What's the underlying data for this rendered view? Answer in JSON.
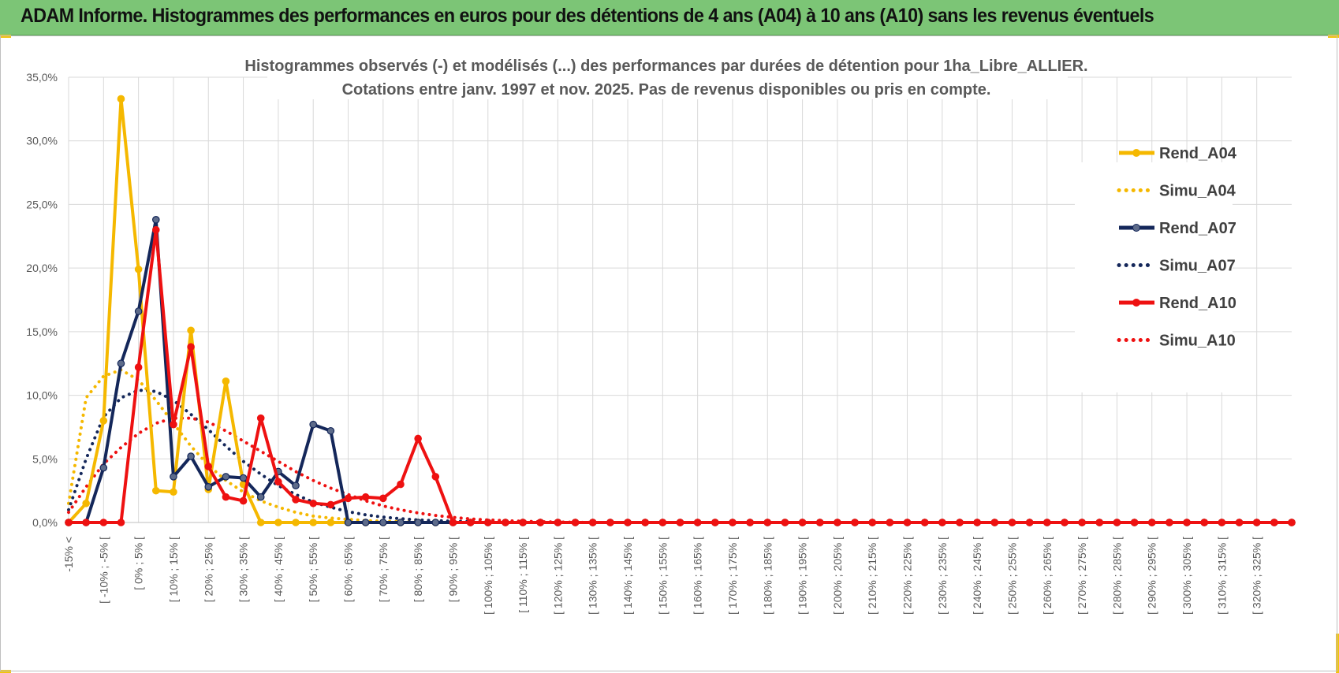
{
  "banner": {
    "title": "ADAM Informe. Histogrammes des performances en euros pour des détentions de 4 ans (A04) à 10 ans (A10) sans les revenus éventuels",
    "color": "#7cc576"
  },
  "chart_data": {
    "type": "line",
    "title_line1": "Histogrammes observés (-) et modélisés (...) des performances par durées de détention pour 1ha_Libre_ALLIER.",
    "title_line2": "Cotations entre janv. 1997 et nov. 2025. Pas de revenus disponibles ou pris en compte.",
    "yticks": [
      "0,0%",
      "5,0%",
      "10,0%",
      "15,0%",
      "20,0%",
      "25,0%",
      "30,0%",
      "35,0%"
    ],
    "ylim": [
      0,
      35
    ],
    "grid": true,
    "legend_position": "right",
    "x_labels": [
      "-15% <",
      "[ -10% ; -5% [",
      "[ 0% ; 5% [",
      "[ 10% ; 15% [",
      "[ 20% ; 25% [",
      "[ 30% ; 35% [",
      "[ 40% ; 45% [",
      "[ 50% ; 55% [",
      "[ 60% ; 65% [",
      "[ 70% ; 75% [",
      "[ 80% ; 85% [",
      "[ 90% ; 95% [",
      "[ 100% ; 105% [",
      "[ 110% ; 115% [",
      "[ 120% ; 125% [",
      "[ 130% ; 135% [",
      "[ 140% ; 145% [",
      "[ 150% ; 155% [",
      "[ 160% ; 165% [",
      "[ 170% ; 175% [",
      "[ 180% ; 185% [",
      "[ 190% ; 195% [",
      "[ 200% ; 205% [",
      "[ 210% ; 215% [",
      "[ 220% ; 225% [",
      "[ 230% ; 235% [",
      "[ 240% ; 245% [",
      "[ 250% ; 255% [",
      "[ 260% ; 265% [",
      "[ 270% ; 275% [",
      "[ 280% ; 285% [",
      "[ 290% ; 295% [",
      "[ 300% ; 305% [",
      "[ 310% ; 315% [",
      "[ 320% ; 325% ["
    ],
    "n_points": 71,
    "series": [
      {
        "name": "Rend_A04",
        "color": "#f5b800",
        "style": "solid",
        "markers": true,
        "values": [
          0,
          1.5,
          8,
          33.3,
          19.9,
          2.5,
          2.4,
          15.1,
          2.6,
          11.1,
          3.0,
          0,
          0,
          0,
          0,
          0,
          0,
          0,
          0,
          0,
          0,
          0,
          0,
          0,
          0,
          0,
          0,
          0,
          0,
          0,
          0,
          0,
          0,
          0,
          0,
          0,
          0,
          0,
          0,
          0,
          0,
          0,
          0,
          0,
          0,
          0,
          0,
          0,
          0,
          0,
          0,
          0,
          0,
          0,
          0,
          0,
          0,
          0,
          0,
          0,
          0,
          0,
          0,
          0,
          0,
          0,
          0,
          0,
          0,
          0,
          0
        ]
      },
      {
        "name": "Simu_A04",
        "color": "#f5b800",
        "style": "dotted",
        "markers": false,
        "values": [
          1.5,
          9.8,
          11.5,
          12.0,
          11.2,
          9.6,
          7.8,
          6.0,
          4.5,
          3.3,
          2.4,
          1.7,
          1.2,
          0.8,
          0.5,
          0.35,
          0.25,
          0.15,
          0.1,
          0.07,
          0.05,
          0,
          0,
          0,
          0,
          0,
          0,
          0,
          0,
          0,
          0,
          0,
          0,
          0,
          0,
          0,
          0,
          0,
          0,
          0,
          0,
          0,
          0,
          0,
          0,
          0,
          0,
          0,
          0,
          0,
          0,
          0,
          0,
          0,
          0,
          0,
          0,
          0,
          0,
          0,
          0,
          0,
          0,
          0,
          0,
          0,
          0,
          0,
          0,
          0,
          0
        ]
      },
      {
        "name": "Rend_A07",
        "color": "#14275a",
        "style": "solid",
        "markers": true,
        "values": [
          0,
          0,
          4.3,
          12.5,
          16.6,
          23.8,
          3.6,
          5.2,
          2.8,
          3.6,
          3.5,
          2.0,
          4.0,
          2.9,
          7.7,
          7.2,
          0,
          0,
          0,
          0,
          0,
          0,
          0,
          0,
          0,
          0,
          0,
          0,
          0,
          0,
          0,
          0,
          0,
          0,
          0,
          0,
          0,
          0,
          0,
          0,
          0,
          0,
          0,
          0,
          0,
          0,
          0,
          0,
          0,
          0,
          0,
          0,
          0,
          0,
          0,
          0,
          0,
          0,
          0,
          0,
          0,
          0,
          0,
          0,
          0,
          0,
          0,
          0,
          0,
          0,
          0
        ]
      },
      {
        "name": "Simu_A07",
        "color": "#14275a",
        "style": "dotted",
        "markers": false,
        "values": [
          1.0,
          5.0,
          8.3,
          9.8,
          10.4,
          10.3,
          9.6,
          8.5,
          7.3,
          6.0,
          4.8,
          3.8,
          2.9,
          2.2,
          1.6,
          1.2,
          0.85,
          0.6,
          0.42,
          0.3,
          0.2,
          0.14,
          0.1,
          0.06,
          0.04,
          0.02,
          0,
          0,
          0,
          0,
          0,
          0,
          0,
          0,
          0,
          0,
          0,
          0,
          0,
          0,
          0,
          0,
          0,
          0,
          0,
          0,
          0,
          0,
          0,
          0,
          0,
          0,
          0,
          0,
          0,
          0,
          0,
          0,
          0,
          0,
          0,
          0,
          0,
          0,
          0,
          0,
          0,
          0,
          0,
          0,
          0
        ]
      },
      {
        "name": "Rend_A10",
        "color": "#ee1111",
        "style": "solid",
        "markers": true,
        "values": [
          0,
          0,
          0,
          0,
          12.2,
          23.0,
          7.7,
          13.8,
          4.4,
          2.0,
          1.7,
          8.2,
          3.2,
          1.8,
          1.5,
          1.4,
          1.9,
          2.0,
          1.9,
          3.0,
          6.6,
          3.6,
          0,
          0,
          0,
          0,
          0,
          0,
          0,
          0,
          0,
          0,
          0,
          0,
          0,
          0,
          0,
          0,
          0,
          0,
          0,
          0,
          0,
          0,
          0,
          0,
          0,
          0,
          0,
          0,
          0,
          0,
          0,
          0,
          0,
          0,
          0,
          0,
          0,
          0,
          0,
          0,
          0,
          0,
          0,
          0,
          0,
          0,
          0,
          0,
          0
        ]
      },
      {
        "name": "Simu_A10",
        "color": "#ee1111",
        "style": "dotted",
        "markers": false,
        "values": [
          0.8,
          2.8,
          4.6,
          5.9,
          7.0,
          7.8,
          8.2,
          8.2,
          7.9,
          7.2,
          6.4,
          5.6,
          4.8,
          4.0,
          3.3,
          2.7,
          2.2,
          1.7,
          1.3,
          1.0,
          0.75,
          0.55,
          0.4,
          0.28,
          0.2,
          0.14,
          0.1,
          0.06,
          0.04,
          0.02,
          0,
          0,
          0,
          0,
          0,
          0,
          0,
          0,
          0,
          0,
          0,
          0,
          0,
          0,
          0,
          0,
          0,
          0,
          0,
          0,
          0,
          0,
          0,
          0,
          0,
          0,
          0,
          0,
          0,
          0,
          0,
          0,
          0,
          0,
          0,
          0,
          0,
          0,
          0,
          0,
          0
        ]
      }
    ]
  }
}
